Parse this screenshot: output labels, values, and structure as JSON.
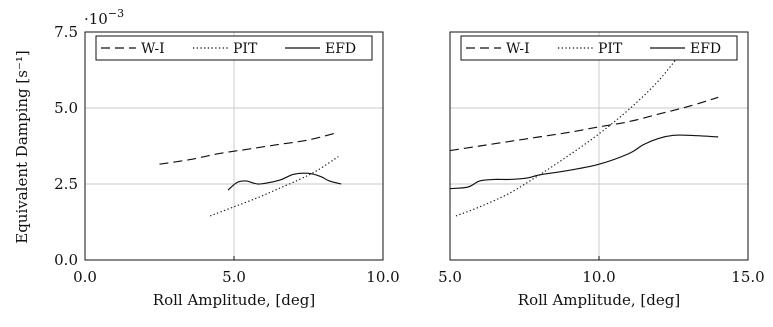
{
  "figure": {
    "yexp_base": "·10",
    "yexp_power": "−3"
  },
  "chart_data": [
    {
      "type": "line",
      "xlabel": "Roll Amplitude, [deg]",
      "ylabel": "Equivalent Damping [s⁻¹]",
      "xlim": [
        0,
        10
      ],
      "ylim": [
        0,
        7.5
      ],
      "xticks": [
        0,
        5,
        10
      ],
      "xtick_labels": [
        "0.0",
        "5.0",
        "10.0"
      ],
      "yticks": [
        0,
        2.5,
        5,
        7.5
      ],
      "ytick_labels": [
        "0.0",
        "2.5",
        "5.0",
        "7.5"
      ],
      "y_multiplier": "·10−3",
      "grid": true,
      "legend": "top",
      "series": [
        {
          "name": "W-I",
          "style": "dashed",
          "x": [
            2.5,
            3.5,
            4.5,
            5.5,
            6.5,
            7.5,
            8.5
          ],
          "y": [
            3.15,
            3.3,
            3.5,
            3.65,
            3.8,
            3.95,
            4.2
          ]
        },
        {
          "name": "PIT",
          "style": "dotted",
          "x": [
            4.2,
            5.0,
            5.8,
            6.5,
            7.2,
            7.8,
            8.5
          ],
          "y": [
            1.45,
            1.75,
            2.05,
            2.35,
            2.65,
            2.95,
            3.4
          ]
        },
        {
          "name": "EFD",
          "style": "solid",
          "x": [
            4.8,
            5.1,
            5.4,
            5.8,
            6.2,
            6.6,
            7.0,
            7.5,
            7.9,
            8.2,
            8.6
          ],
          "y": [
            2.3,
            2.55,
            2.6,
            2.5,
            2.55,
            2.65,
            2.82,
            2.85,
            2.75,
            2.6,
            2.5
          ]
        }
      ]
    },
    {
      "type": "line",
      "xlabel": "Roll Amplitude, [deg]",
      "xlim": [
        5,
        15
      ],
      "ylim": [
        0,
        7.5
      ],
      "xticks": [
        5,
        10,
        15
      ],
      "xtick_labels": [
        "5.0",
        "10.0",
        "15.0"
      ],
      "grid": true,
      "legend": "top",
      "series": [
        {
          "name": "W-I",
          "style": "dashed",
          "x": [
            5.0,
            6.0,
            7.0,
            8.0,
            9.0,
            10.0,
            11.0,
            12.0,
            13.0,
            14.0
          ],
          "y": [
            3.6,
            3.75,
            3.9,
            4.05,
            4.2,
            4.38,
            4.55,
            4.8,
            5.05,
            5.35
          ]
        },
        {
          "name": "PIT",
          "style": "dotted",
          "x": [
            5.2,
            6.0,
            7.0,
            8.0,
            9.0,
            10.0,
            11.0,
            12.0,
            12.9
          ],
          "y": [
            1.45,
            1.75,
            2.2,
            2.8,
            3.45,
            4.15,
            4.95,
            5.9,
            7.0
          ]
        },
        {
          "name": "EFD",
          "style": "solid",
          "x": [
            5.0,
            5.6,
            6.0,
            6.5,
            7.0,
            7.6,
            8.0,
            9.0,
            10.0,
            11.0,
            11.5,
            12.0,
            12.5,
            13.0,
            14.0
          ],
          "y": [
            2.35,
            2.4,
            2.6,
            2.65,
            2.65,
            2.7,
            2.8,
            2.95,
            3.15,
            3.5,
            3.8,
            4.0,
            4.1,
            4.1,
            4.05
          ]
        }
      ]
    }
  ]
}
